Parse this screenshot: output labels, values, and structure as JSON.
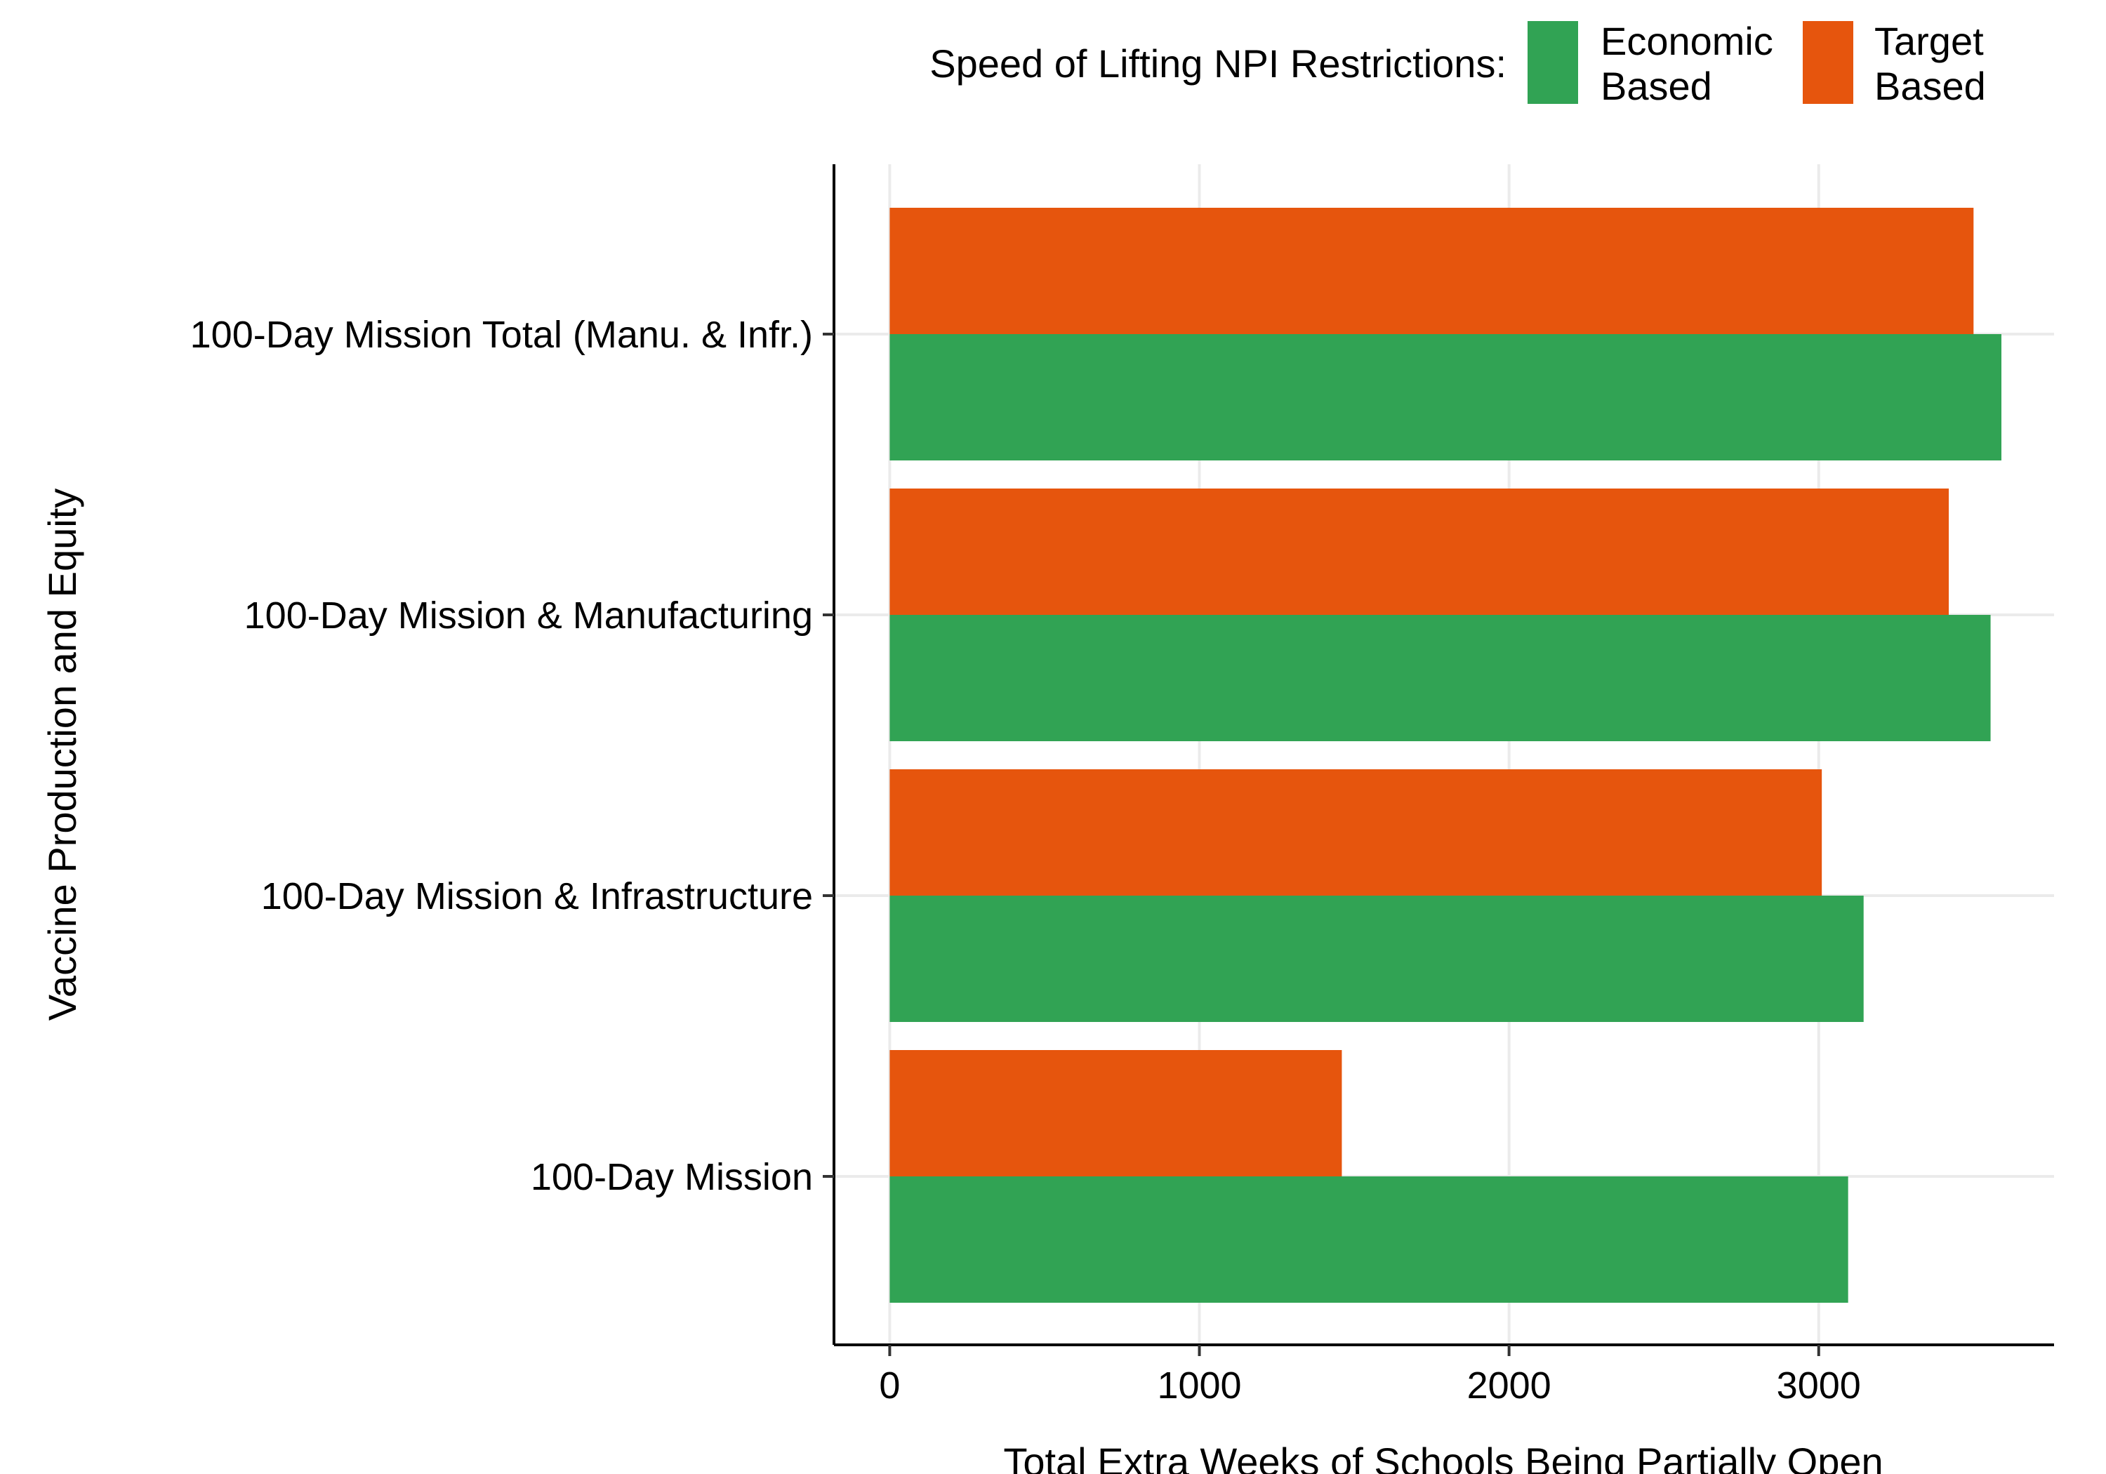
{
  "chart_data": {
    "type": "bar",
    "orientation": "horizontal",
    "categories": [
      "100-Day Mission Total (Manu. & Infr.)",
      "100-Day Mission & Manufacturing",
      "100-Day Mission & Infrastructure",
      "100-Day Mission"
    ],
    "series": [
      {
        "name": "Economic Based",
        "name_lines": [
          "Economic",
          "Based"
        ],
        "color": "#31a354",
        "values": [
          3590,
          3555,
          3145,
          3095
        ]
      },
      {
        "name": "Target Based",
        "name_lines": [
          "Target",
          "Based"
        ],
        "color": "#e6550d",
        "values": [
          3500,
          3420,
          3010,
          1460
        ]
      }
    ],
    "xlabel": "Total Extra Weeks of Schools Being Partially Open",
    "ylabel": "Vaccine Production and Equity",
    "xlim": [
      -180,
      3760
    ],
    "xticks": [
      0,
      1000,
      2000,
      3000
    ],
    "xtick_labels": [
      "0",
      "1000",
      "2000",
      "3000"
    ],
    "grid": true,
    "legend": {
      "title": "Speed of Lifting NPI Restrictions:",
      "position": "top"
    }
  }
}
